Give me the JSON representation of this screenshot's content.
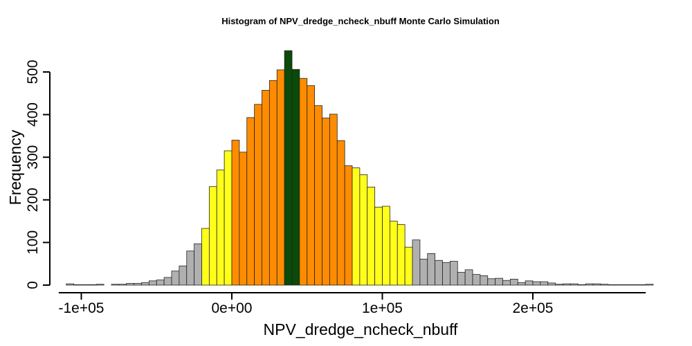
{
  "chart_data": {
    "type": "bar",
    "title": "Histogram of  NPV_dredge_ncheck_nbuff  Monte Carlo Simulation",
    "xlabel": "NPV_dredge_ncheck_nbuff",
    "ylabel": "Frequency",
    "xlim": [
      -115000,
      275000
    ],
    "ylim": [
      0,
      550
    ],
    "bin_width": 5000,
    "bin_start": -110000,
    "x_ticks": [
      {
        "value": -100000,
        "label": "-1e+05"
      },
      {
        "value": 0,
        "label": "0e+00"
      },
      {
        "value": 100000,
        "label": "1e+05"
      },
      {
        "value": 200000,
        "label": "2e+05"
      }
    ],
    "y_ticks": [
      {
        "value": 0,
        "label": "0"
      },
      {
        "value": 100,
        "label": "100"
      },
      {
        "value": 200,
        "label": "200"
      },
      {
        "value": 300,
        "label": "300"
      },
      {
        "value": 400,
        "label": "400"
      },
      {
        "value": 500,
        "label": "500"
      }
    ],
    "colors": {
      "tail": "#b0b0b0",
      "outer": "#ffff1a",
      "inner": "#ff8c00",
      "center": "#0a4a0a"
    },
    "frequencies": [
      3,
      1,
      1,
      1,
      2,
      0,
      2,
      2,
      4,
      4,
      6,
      10,
      12,
      18,
      33,
      45,
      80,
      97,
      133,
      231,
      270,
      315,
      340,
      312,
      393,
      424,
      457,
      480,
      505,
      550,
      506,
      485,
      468,
      421,
      392,
      401,
      339,
      280,
      275,
      259,
      230,
      183,
      185,
      150,
      142,
      89,
      106,
      61,
      74,
      58,
      53,
      56,
      30,
      36,
      25,
      22,
      15,
      16,
      11,
      14,
      6,
      10,
      8,
      8,
      5,
      2,
      3,
      3,
      1,
      3,
      3,
      2,
      1,
      1,
      1,
      1,
      1,
      2
    ]
  }
}
